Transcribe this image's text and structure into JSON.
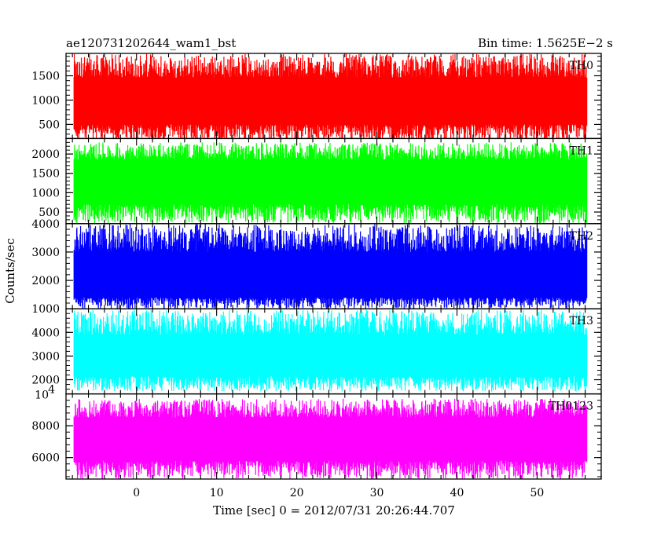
{
  "chart_data": {
    "type": "line",
    "title_left": "ae120731202644_wam1_bst",
    "title_right": "Bin time: 1.5625E−2 s",
    "xlabel": "Time [sec] 0 = 2012/07/31 20:26:44.707",
    "ylabel": "Counts/sec",
    "x_range": [
      -8.8,
      58
    ],
    "x_ticks": [
      0,
      10,
      20,
      30,
      40,
      50
    ],
    "data_x_range": [
      -7.8,
      56.2
    ],
    "bin_time": 0.015625,
    "panels": [
      {
        "name": "TH0",
        "color": "#ff0000",
        "ylim": [
          210,
          1960
        ],
        "y_ticks": [
          500,
          1000,
          1500
        ],
        "y_tick_labels": [
          "500",
          "1000",
          "1500"
        ],
        "mean": 950,
        "band_low": 500,
        "band_high": 1460,
        "spike_low": 150,
        "spike_high": 1950
      },
      {
        "name": "TH1",
        "color": "#00ff00",
        "ylim": [
          200,
          2400
        ],
        "y_ticks": [
          500,
          1000,
          1500,
          2000
        ],
        "y_tick_labels": [
          "500",
          "1000",
          "1500",
          "2000"
        ],
        "mean": 1250,
        "band_low": 700,
        "band_high": 1850,
        "spike_low": 200,
        "spike_high": 2300
      },
      {
        "name": "TH2",
        "color": "#0000ff",
        "ylim": [
          1000,
          4000
        ],
        "y_ticks": [
          1000,
          2000,
          3000,
          4000
        ],
        "y_tick_labels": [
          "1000",
          "2000",
          "3000",
          "4000"
        ],
        "mean": 2200,
        "band_low": 1400,
        "band_high": 3000,
        "spike_low": 1000,
        "spike_high": 4000
      },
      {
        "name": "TH3",
        "color": "#00ffff",
        "ylim": [
          1400,
          5000
        ],
        "y_ticks": [
          2000,
          3000,
          4000
        ],
        "y_tick_labels": [
          "2000",
          "3000",
          "4000"
        ],
        "mean": 3000,
        "band_low": 2150,
        "band_high": 3900,
        "spike_low": 1500,
        "spike_high": 4950
      },
      {
        "name": "TH0123",
        "color": "#ff00ff",
        "ylim": [
          4650,
          10000
        ],
        "y_ticks": [
          6000,
          8000
        ],
        "y_tick_labels": [
          "6000",
          "8000"
        ],
        "top_label": "10",
        "top_label_exponent": "4",
        "mean": 7000,
        "band_low": 5800,
        "band_high": 8500,
        "spike_low": 4650,
        "spike_high": 9700
      }
    ]
  }
}
